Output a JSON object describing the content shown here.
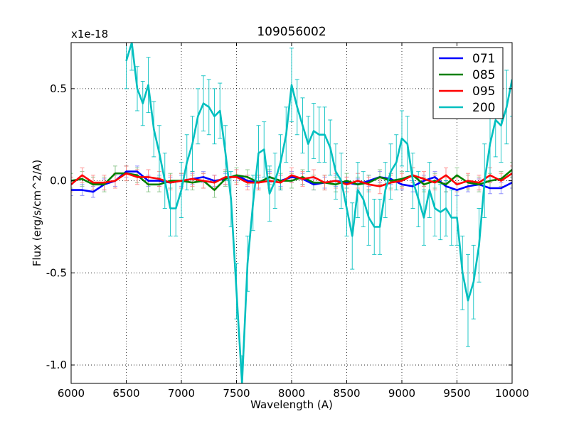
{
  "chart_data": {
    "type": "line",
    "title": "109056002",
    "xlabel": "Wavelength (A)",
    "ylabel": "Flux (erg/s/cm^2/A)",
    "offset_text": "x1e-18",
    "xlim": [
      6000,
      10000
    ],
    "ylim": [
      -1.1,
      0.75
    ],
    "xticks": [
      6000,
      6500,
      7000,
      7500,
      8000,
      8500,
      9000,
      9500,
      10000
    ],
    "xtick_labels": [
      "6000",
      "6500",
      "7000",
      "7500",
      "8000",
      "8500",
      "9000",
      "9500",
      "10000"
    ],
    "yticks": [
      -1.0,
      -0.5,
      0.0,
      0.5
    ],
    "ytick_labels": [
      "-1.0",
      "-0.5",
      "0.0",
      "0.5"
    ],
    "grid": true,
    "legend_position": "top-right",
    "series": [
      {
        "name": "071",
        "color": "#0000ff",
        "err_color": "#7f7fff",
        "x": [
          6000,
          6100,
          6200,
          6300,
          6400,
          6500,
          6600,
          6700,
          6800,
          6900,
          7000,
          7100,
          7200,
          7300,
          7400,
          7500,
          7600,
          7700,
          7800,
          7900,
          8000,
          8100,
          8200,
          8300,
          8400,
          8500,
          8600,
          8700,
          8800,
          8900,
          9000,
          9100,
          9200,
          9300,
          9400,
          9500,
          9600,
          9700,
          9800,
          9900,
          10000
        ],
        "y": [
          -0.05,
          -0.05,
          -0.06,
          -0.02,
          0.0,
          0.05,
          0.05,
          0.0,
          0.0,
          -0.01,
          0.0,
          0.01,
          0.02,
          0.0,
          0.01,
          0.03,
          0.0,
          -0.01,
          0.02,
          0.0,
          0.02,
          0.01,
          -0.02,
          -0.01,
          0.0,
          -0.01,
          -0.02,
          0.0,
          0.02,
          0.01,
          -0.02,
          -0.03,
          0.0,
          0.02,
          -0.03,
          -0.05,
          -0.03,
          -0.02,
          -0.04,
          -0.04,
          -0.01
        ],
        "err": [
          0.03,
          0.03,
          0.03,
          0.03,
          0.03,
          0.03,
          0.03,
          0.03,
          0.03,
          0.03,
          0.03,
          0.03,
          0.03,
          0.03,
          0.03,
          0.03,
          0.03,
          0.03,
          0.03,
          0.03,
          0.03,
          0.03,
          0.03,
          0.03,
          0.03,
          0.03,
          0.03,
          0.03,
          0.03,
          0.03,
          0.03,
          0.03,
          0.03,
          0.03,
          0.03,
          0.03,
          0.03,
          0.03,
          0.03,
          0.03,
          0.03
        ]
      },
      {
        "name": "085",
        "color": "#008000",
        "err_color": "#7fbf7f",
        "x": [
          6000,
          6100,
          6200,
          6300,
          6400,
          6500,
          6600,
          6700,
          6800,
          6900,
          7000,
          7100,
          7200,
          7300,
          7400,
          7500,
          7600,
          7700,
          7800,
          7900,
          8000,
          8100,
          8200,
          8300,
          8400,
          8500,
          8600,
          8700,
          8800,
          8900,
          9000,
          9100,
          9200,
          9300,
          9400,
          9500,
          9600,
          9700,
          9800,
          9900,
          10000
        ],
        "y": [
          0.0,
          0.01,
          -0.02,
          -0.02,
          0.04,
          0.04,
          0.03,
          -0.02,
          -0.02,
          0.0,
          0.0,
          -0.01,
          0.0,
          -0.05,
          0.01,
          0.03,
          0.02,
          -0.01,
          0.02,
          0.0,
          0.0,
          0.02,
          -0.01,
          -0.01,
          -0.02,
          0.0,
          -0.02,
          -0.01,
          0.02,
          0.0,
          0.01,
          0.03,
          -0.02,
          0.0,
          -0.02,
          0.03,
          -0.01,
          -0.02,
          0.0,
          0.01,
          0.06
        ],
        "err": [
          0.04,
          0.04,
          0.04,
          0.04,
          0.04,
          0.04,
          0.04,
          0.04,
          0.04,
          0.04,
          0.04,
          0.04,
          0.04,
          0.04,
          0.04,
          0.04,
          0.04,
          0.04,
          0.04,
          0.04,
          0.04,
          0.04,
          0.04,
          0.04,
          0.04,
          0.04,
          0.04,
          0.04,
          0.04,
          0.04,
          0.04,
          0.04,
          0.04,
          0.04,
          0.04,
          0.04,
          0.04,
          0.04,
          0.04,
          0.04,
          0.04
        ]
      },
      {
        "name": "095",
        "color": "#ff0000",
        "err_color": "#ff7f7f",
        "x": [
          6000,
          6100,
          6200,
          6300,
          6400,
          6500,
          6600,
          6700,
          6800,
          6900,
          7000,
          7100,
          7200,
          7300,
          7400,
          7500,
          7600,
          7700,
          7800,
          7900,
          8000,
          8100,
          8200,
          8300,
          8400,
          8500,
          8600,
          8700,
          8800,
          8900,
          9000,
          9100,
          9200,
          9300,
          9400,
          9500,
          9600,
          9700,
          9800,
          9900,
          10000
        ],
        "y": [
          -0.02,
          0.03,
          -0.01,
          -0.01,
          0.0,
          0.04,
          0.02,
          0.02,
          0.01,
          -0.01,
          0.0,
          0.01,
          0.0,
          -0.01,
          0.02,
          0.02,
          -0.01,
          -0.01,
          0.0,
          -0.01,
          0.03,
          0.01,
          0.02,
          -0.01,
          0.0,
          -0.02,
          0.0,
          -0.02,
          -0.03,
          -0.01,
          0.0,
          0.03,
          0.01,
          -0.01,
          0.03,
          -0.02,
          0.0,
          -0.01,
          0.03,
          0.0,
          0.04
        ],
        "err": [
          0.04,
          0.04,
          0.04,
          0.04,
          0.04,
          0.04,
          0.04,
          0.04,
          0.04,
          0.04,
          0.04,
          0.04,
          0.04,
          0.04,
          0.04,
          0.04,
          0.04,
          0.04,
          0.04,
          0.04,
          0.04,
          0.04,
          0.04,
          0.04,
          0.04,
          0.04,
          0.04,
          0.04,
          0.04,
          0.04,
          0.04,
          0.04,
          0.04,
          0.04,
          0.04,
          0.04,
          0.04,
          0.04,
          0.04,
          0.04,
          0.04
        ]
      },
      {
        "name": "200",
        "color": "#00bfbf",
        "err_color": "#00bfbf",
        "x": [
          6500,
          6550,
          6600,
          6650,
          6700,
          6750,
          6800,
          6850,
          6900,
          6950,
          7000,
          7050,
          7100,
          7150,
          7200,
          7250,
          7300,
          7350,
          7400,
          7450,
          7500,
          7550,
          7600,
          7650,
          7700,
          7750,
          7800,
          7850,
          7900,
          7950,
          8000,
          8050,
          8100,
          8150,
          8200,
          8250,
          8300,
          8350,
          8400,
          8450,
          8500,
          8550,
          8600,
          8650,
          8700,
          8750,
          8800,
          8850,
          8900,
          8950,
          9000,
          9050,
          9100,
          9150,
          9200,
          9250,
          9300,
          9350,
          9400,
          9450,
          9500,
          9550,
          9600,
          9650,
          9700,
          9750,
          9800,
          9850,
          9900,
          9950,
          10000
        ],
        "y": [
          0.65,
          0.75,
          0.5,
          0.42,
          0.52,
          0.28,
          0.15,
          0.0,
          -0.15,
          -0.15,
          -0.05,
          0.1,
          0.2,
          0.35,
          0.42,
          0.4,
          0.35,
          0.38,
          0.15,
          -0.1,
          -0.6,
          -1.1,
          -0.45,
          -0.12,
          0.15,
          0.17,
          -0.07,
          0.0,
          0.1,
          0.25,
          0.52,
          0.4,
          0.3,
          0.2,
          0.27,
          0.25,
          0.25,
          0.18,
          0.05,
          0.0,
          -0.15,
          -0.3,
          -0.05,
          -0.1,
          -0.2,
          -0.25,
          -0.25,
          -0.05,
          0.05,
          0.1,
          0.23,
          0.2,
          0.0,
          -0.1,
          -0.2,
          -0.05,
          -0.15,
          -0.17,
          -0.15,
          -0.2,
          -0.2,
          -0.5,
          -0.65,
          -0.55,
          -0.35,
          0.0,
          0.2,
          0.33,
          0.3,
          0.4,
          0.55
        ],
        "err": [
          0.15,
          0.15,
          0.12,
          0.12,
          0.15,
          0.15,
          0.15,
          0.15,
          0.15,
          0.15,
          0.15,
          0.15,
          0.15,
          0.15,
          0.15,
          0.15,
          0.15,
          0.15,
          0.15,
          0.15,
          0.15,
          0.15,
          0.15,
          0.15,
          0.15,
          0.15,
          0.15,
          0.15,
          0.15,
          0.15,
          0.2,
          0.15,
          0.15,
          0.15,
          0.15,
          0.15,
          0.15,
          0.15,
          0.15,
          0.15,
          0.15,
          0.18,
          0.15,
          0.15,
          0.15,
          0.15,
          0.15,
          0.15,
          0.15,
          0.15,
          0.15,
          0.15,
          0.15,
          0.15,
          0.15,
          0.15,
          0.15,
          0.15,
          0.15,
          0.15,
          0.15,
          0.2,
          0.25,
          0.2,
          0.2,
          0.2,
          0.2,
          0.2,
          0.2,
          0.2,
          0.2
        ]
      }
    ]
  }
}
